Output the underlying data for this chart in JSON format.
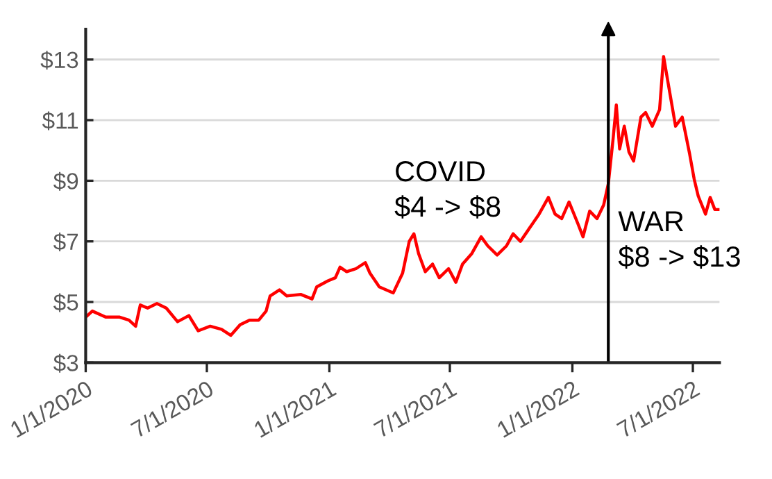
{
  "chart_data": {
    "type": "line",
    "x": [
      "2020-01-01",
      "2020-01-11",
      "2020-01-31",
      "2020-02-21",
      "2020-03-06",
      "2020-03-16",
      "2020-03-23",
      "2020-04-03",
      "2020-04-17",
      "2020-05-01",
      "2020-05-18",
      "2020-06-04",
      "2020-06-18",
      "2020-07-06",
      "2020-07-23",
      "2020-08-06",
      "2020-08-20",
      "2020-09-03",
      "2020-09-17",
      "2020-09-28",
      "2020-10-04",
      "2020-10-18",
      "2020-10-29",
      "2020-11-19",
      "2020-12-06",
      "2020-12-13",
      "2020-12-30",
      "2021-01-10",
      "2021-01-17",
      "2021-01-27",
      "2021-02-10",
      "2021-02-24",
      "2021-03-03",
      "2021-03-17",
      "2021-04-07",
      "2021-04-21",
      "2021-05-01",
      "2021-05-08",
      "2021-05-15",
      "2021-05-25",
      "2021-06-05",
      "2021-06-15",
      "2021-06-29",
      "2021-07-10",
      "2021-07-20",
      "2021-08-03",
      "2021-08-17",
      "2021-08-27",
      "2021-09-10",
      "2021-09-24",
      "2021-10-04",
      "2021-10-15",
      "2021-10-29",
      "2021-11-12",
      "2021-11-26",
      "2021-12-06",
      "2021-12-16",
      "2021-12-27",
      "2022-01-09",
      "2022-01-17",
      "2022-01-27",
      "2022-02-07",
      "2022-02-17",
      "2022-02-24",
      "2022-03-03",
      "2022-03-08",
      "2022-03-13",
      "2022-03-20",
      "2022-03-27",
      "2022-04-03",
      "2022-04-14",
      "2022-04-21",
      "2022-05-01",
      "2022-05-12",
      "2022-05-18",
      "2022-05-25",
      "2022-06-05",
      "2022-06-15",
      "2022-06-26",
      "2022-07-03",
      "2022-07-09",
      "2022-07-20",
      "2022-07-27",
      "2022-08-03",
      "2022-08-10"
    ],
    "series": [
      {
        "color": "#ff0000",
        "values": [
          4.5,
          4.7,
          4.5,
          4.5,
          4.4,
          4.2,
          4.9,
          4.8,
          4.95,
          4.8,
          4.35,
          4.55,
          4.05,
          4.2,
          4.1,
          3.9,
          4.25,
          4.4,
          4.4,
          4.7,
          5.2,
          5.4,
          5.2,
          5.25,
          5.1,
          5.5,
          5.7,
          5.8,
          6.15,
          6.0,
          6.1,
          6.3,
          5.95,
          5.5,
          5.3,
          5.95,
          7.0,
          7.25,
          6.6,
          6.0,
          6.25,
          5.8,
          6.1,
          5.65,
          6.25,
          6.6,
          7.15,
          6.85,
          6.55,
          6.85,
          7.25,
          7.0,
          7.45,
          7.9,
          8.45,
          7.9,
          7.75,
          8.3,
          7.6,
          7.15,
          8.0,
          7.75,
          8.2,
          8.9,
          10.35,
          11.5,
          10.05,
          10.8,
          9.95,
          9.65,
          11.1,
          11.25,
          10.8,
          11.35,
          13.1,
          12.2,
          10.8,
          11.1,
          9.9,
          9.05,
          8.5,
          7.9,
          8.45,
          8.05,
          8.05
        ]
      }
    ],
    "xlim": [
      "2020-01-01",
      "2022-08-10"
    ],
    "xticks": [
      {
        "value": "2020-01-01",
        "label": "1/1/2020"
      },
      {
        "value": "2020-07-01",
        "label": "7/1/2020"
      },
      {
        "value": "2021-01-01",
        "label": "1/1/2021"
      },
      {
        "value": "2021-07-01",
        "label": "7/1/2021"
      },
      {
        "value": "2022-01-01",
        "label": "1/1/2022"
      },
      {
        "value": "2022-07-01",
        "label": "7/1/2022"
      }
    ],
    "ylim": [
      3,
      14
    ],
    "yticks": [
      {
        "value": 3,
        "label": "$3"
      },
      {
        "value": 5,
        "label": "$5"
      },
      {
        "value": 7,
        "label": "$7"
      },
      {
        "value": 9,
        "label": "$9"
      },
      {
        "value": 11,
        "label": "$11"
      },
      {
        "value": 13,
        "label": "$13"
      }
    ],
    "grid": "y",
    "legend": false,
    "ref_lines": [
      {
        "axis": "x",
        "value": "2022-02-24",
        "color": "#000000"
      }
    ],
    "annotations": [
      "COVID\n$4 -> $8",
      "WAR\n$8 -> $13"
    ]
  }
}
